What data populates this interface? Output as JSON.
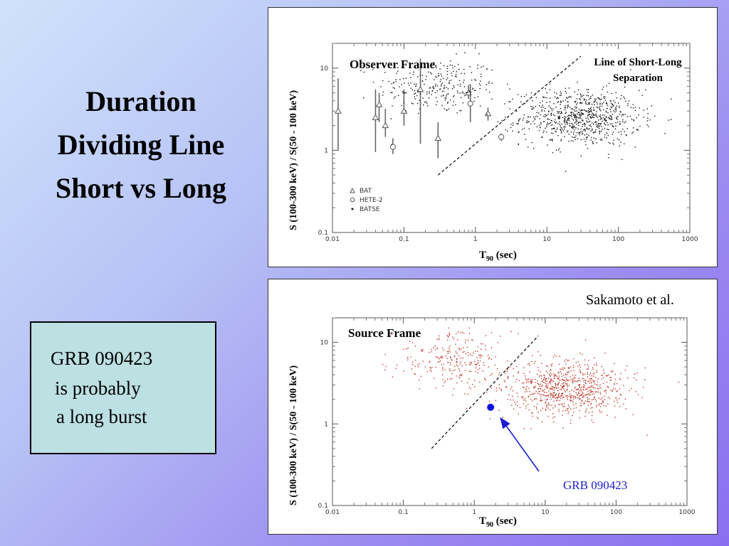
{
  "slide": {
    "title_lines": [
      "Duration",
      "Dividing Line",
      "Short vs Long"
    ],
    "note_lines": [
      "GRB 090423",
      "is probably",
      "a long burst"
    ]
  },
  "top_panel": {
    "frame_label": "Observer Frame",
    "separation_label_lines": [
      "Line of Short-Long",
      "Separation"
    ],
    "ylabel": "S (100-300 keV) / S(50 - 100 keV)",
    "xlabel_main": "T",
    "xlabel_sub": "90",
    "xlabel_tail": " (sec)",
    "legend": [
      "BAT",
      "HETE-2",
      "BATSE"
    ]
  },
  "bottom_panel": {
    "credit": "Sakamoto et al.",
    "frame_label": "Source Frame",
    "grb_label": "GRB 090423",
    "ylabel": "S (100-300 keV) / S(50 - 100 keV)",
    "xlabel_main": "T",
    "xlabel_sub": "90",
    "xlabel_tail": " (sec)"
  },
  "chart_data": [
    {
      "type": "scatter",
      "title": "Observer Frame",
      "xlabel": "T90 (sec)",
      "ylabel": "S (100-300 keV) / S(50 - 100 keV)",
      "xscale": "log",
      "yscale": "log",
      "xlim": [
        0.01,
        1000
      ],
      "ylim": [
        0.1,
        20
      ],
      "x_tick_labels": [
        "0.01",
        "0.1",
        "1",
        "10",
        "100",
        "1000"
      ],
      "y_tick_labels": [
        "0.1",
        "1",
        "10"
      ],
      "legend": [
        "BAT",
        "HETE-2",
        "BATSE"
      ],
      "series": [
        {
          "name": "BAT",
          "marker": "triangle",
          "points": [
            {
              "x": 0.012,
              "y": 3.0,
              "ylo": 1.0,
              "yhi": 7.5
            },
            {
              "x": 0.04,
              "y": 2.5,
              "ylo": 0.95,
              "yhi": 5.5
            },
            {
              "x": 0.045,
              "y": 3.6,
              "ylo": 2.2,
              "yhi": 5.0
            },
            {
              "x": 0.055,
              "y": 2.0,
              "ylo": 1.45,
              "yhi": 3.2
            },
            {
              "x": 0.1,
              "y": 3.0,
              "ylo": 2.0,
              "yhi": 5.5
            },
            {
              "x": 0.17,
              "y": 5.5,
              "ylo": 1.2,
              "yhi": 13.0
            },
            {
              "x": 0.3,
              "y": 1.4,
              "ylo": 0.8,
              "yhi": 2.2
            },
            {
              "x": 0.8,
              "y": 5.0,
              "ylo": 4.2,
              "yhi": 6.2
            },
            {
              "x": 1.5,
              "y": 2.8,
              "ylo": 2.3,
              "yhi": 3.3
            }
          ]
        },
        {
          "name": "HETE-2",
          "marker": "circle",
          "points": [
            {
              "x": 0.07,
              "y": 1.1,
              "ylo": 0.9,
              "yhi": 1.4
            },
            {
              "x": 0.85,
              "y": 3.7,
              "ylo": 2.2,
              "yhi": 6.2
            },
            {
              "x": 2.3,
              "y": 1.45,
              "ylo": 1.3,
              "yhi": 1.6
            }
          ]
        },
        {
          "name": "BATSE",
          "marker": "dot",
          "clusters": [
            {
              "x_center": 0.3,
              "y_center": 6.0,
              "count": 260
            },
            {
              "x_center": 30,
              "y_center": 2.5,
              "count": 780
            }
          ]
        }
      ],
      "annotations": [
        {
          "text": "Line of Short-Long Separation",
          "line": [
            [
              0.3,
              0.5
            ],
            [
              30,
              14
            ]
          ],
          "style": "dashed"
        }
      ]
    },
    {
      "type": "scatter",
      "title": "Source Frame",
      "xlabel": "T90 (sec)",
      "ylabel": "S (100-300 keV) / S(50 - 100 keV)",
      "xscale": "log",
      "yscale": "log",
      "xlim": [
        0.01,
        1000
      ],
      "ylim": [
        0.1,
        20
      ],
      "x_tick_labels": [
        "0.01",
        "0.1",
        "1",
        "10",
        "100",
        "1000"
      ],
      "y_tick_labels": [
        "0.1",
        "1",
        "10"
      ],
      "series": [
        {
          "marker": "dot",
          "color": "#c0392b",
          "clusters": [
            {
              "x_center": 0.5,
              "y_center": 6.0,
              "count": 260
            },
            {
              "x_center": 20,
              "y_center": 2.7,
              "count": 780
            }
          ]
        },
        {
          "name": "GRB 090423",
          "marker": "big-dot",
          "color": "#1010e0",
          "points": [
            {
              "x": 1.7,
              "y": 1.6
            }
          ]
        }
      ],
      "annotations": [
        {
          "text": "GRB 090423",
          "arrow_to": [
            2.4,
            1.15
          ]
        },
        {
          "line": [
            [
              0.25,
              0.5
            ],
            [
              8,
              12
            ]
          ],
          "style": "dashed"
        }
      ]
    }
  ]
}
